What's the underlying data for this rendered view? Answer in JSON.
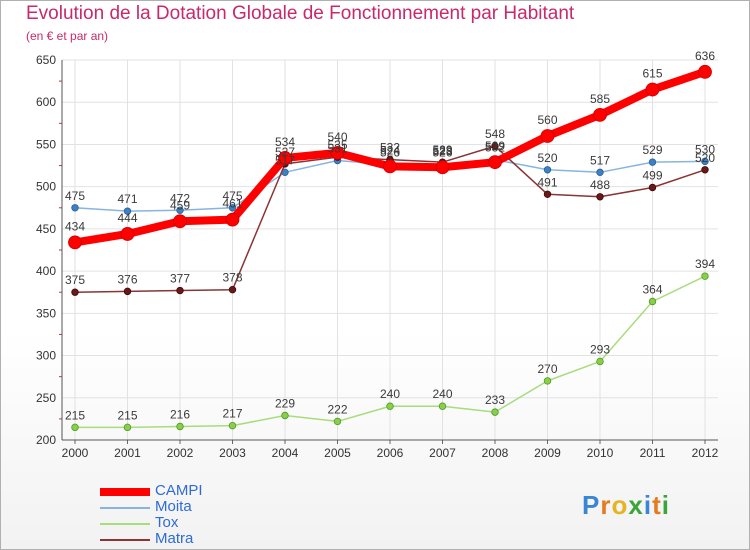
{
  "title": "Evolution de la Dotation Globale de Fonctionnement par Habitant",
  "subtitle": "(en € et par an)",
  "logo": {
    "letters": [
      {
        "ch": "P",
        "color": "#3a86d4"
      },
      {
        "ch": "r",
        "color": "#e57b1e"
      },
      {
        "ch": "o",
        "color": "#e6b422"
      },
      {
        "ch": "x",
        "color": "#3aa63a"
      },
      {
        "ch": "i",
        "color": "#3a86d4"
      },
      {
        "ch": "t",
        "color": "#e57b1e"
      },
      {
        "ch": "i",
        "color": "#3aa63a"
      }
    ]
  },
  "chart_data": {
    "type": "line",
    "title": "Evolution de la Dotation Globale de Fonctionnement par Habitant",
    "subtitle": "(en € et par an)",
    "x": [
      "2000",
      "2001",
      "2002",
      "2003",
      "2004",
      "2005",
      "2006",
      "2007",
      "2008",
      "2009",
      "2010",
      "2011",
      "2012"
    ],
    "ylim": [
      200,
      650
    ],
    "yticks": [
      200,
      250,
      300,
      350,
      400,
      450,
      500,
      550,
      600,
      650
    ],
    "grid": true,
    "legend": "bottom-left",
    "series": [
      {
        "name": "CAMPI",
        "color": "#ff0000",
        "values": [
          434,
          444,
          459,
          461,
          534,
          540,
          524,
          523,
          529,
          560,
          585,
          615,
          636
        ]
      },
      {
        "name": "Moita",
        "color": "#4d8fcc",
        "values": [
          475,
          471,
          472,
          475,
          517,
          531,
          526,
          526,
          532,
          520,
          517,
          529,
          530
        ]
      },
      {
        "name": "Tox",
        "color": "#99dd66",
        "values": [
          215,
          215,
          216,
          217,
          229,
          222,
          240,
          240,
          233,
          270,
          293,
          364,
          394
        ]
      },
      {
        "name": "Matra",
        "color": "#7a2020",
        "values": [
          375,
          376,
          377,
          378,
          527,
          535,
          532,
          529,
          548,
          491,
          488,
          499,
          520
        ]
      }
    ]
  }
}
